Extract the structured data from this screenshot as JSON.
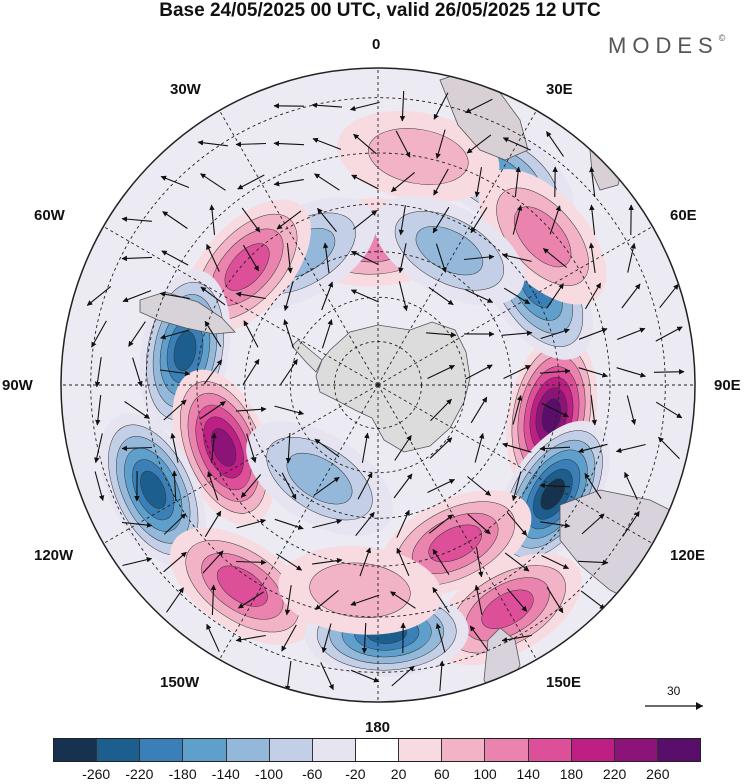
{
  "title": "Base 24/05/2025 00 UTC, valid 26/05/2025 12 UTC",
  "brand": {
    "name": "MODES",
    "mark": "©"
  },
  "longitude_labels": {
    "lon_0": "0",
    "lon_30e": "30E",
    "lon_60e": "60E",
    "lon_90e": "90E",
    "lon_120e": "120E",
    "lon_150e": "150E",
    "lon_180": "180",
    "lon_150w": "150W",
    "lon_120w": "120W",
    "lon_90w": "90W",
    "lon_60w": "60W",
    "lon_30w": "30W"
  },
  "reference_vector": {
    "value": "30"
  },
  "colorbar": {
    "colors": [
      "#16324f",
      "#1c5f8f",
      "#3a7fb8",
      "#5e9fcc",
      "#93b8da",
      "#c3cfe6",
      "#e6e4f0",
      "#ffffff",
      "#f7dbe0",
      "#f1b3c5",
      "#ea83ae",
      "#dd4f98",
      "#bd1f84",
      "#8c1378",
      "#5a0e6b"
    ],
    "ticks": [
      "-260",
      "-220",
      "-180",
      "-140",
      "-100",
      "-60",
      "-20",
      "20",
      "60",
      "100",
      "140",
      "180",
      "220",
      "260"
    ]
  },
  "map": {
    "projection": "south polar stereographic",
    "field": "shaded anomaly with wind vectors",
    "anomalies": [
      {
        "lon": -100,
        "lat": -51,
        "value": 250
      },
      {
        "lon": -122,
        "lat": -45,
        "value": -240
      },
      {
        "lon": -58,
        "lat": -49,
        "value": -180
      },
      {
        "lon": -30,
        "lat": -38,
        "value": -120
      },
      {
        "lon": -48,
        "lat": -42,
        "value": 80
      },
      {
        "lon": 2,
        "lat": -58,
        "value": 90
      },
      {
        "lon": -10,
        "lat": -40,
        "value": 60
      },
      {
        "lon": 30,
        "lat": -56,
        "value": -110
      },
      {
        "lon": -28,
        "lat": -56,
        "value": -80
      },
      {
        "lon": 48,
        "lat": -51,
        "value": 140
      },
      {
        "lon": 80,
        "lat": -47,
        "value": -220
      },
      {
        "lon": 112,
        "lat": -53,
        "value": 200
      },
      {
        "lon": 115,
        "lat": -37,
        "value": -220
      },
      {
        "lon": 148,
        "lat": -65,
        "value": -110
      },
      {
        "lon": 146,
        "lat": -38,
        "value": 130
      },
      {
        "lon": -154,
        "lat": -51,
        "value": 150
      },
      {
        "lon": -150,
        "lat": -35,
        "value": 130
      },
      {
        "lon": -178,
        "lat": -37,
        "value": -200
      },
      {
        "lon": 175,
        "lat": -45,
        "value": 60
      }
    ]
  }
}
